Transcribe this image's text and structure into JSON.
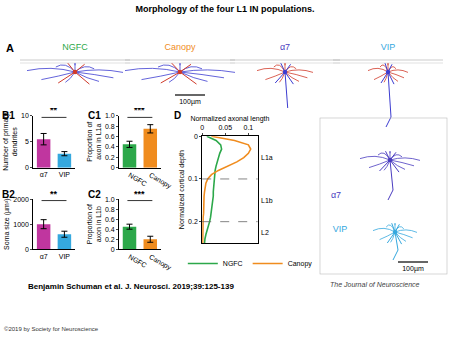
{
  "title": "Morphology of the four L1 IN populations.",
  "panel_a": {
    "label": "A",
    "cells": [
      {
        "name": "NGFC",
        "color": "#2ca84a"
      },
      {
        "name": "Canopy",
        "color": "#f08c1e"
      },
      {
        "name": "α7",
        "color": "#4a3cc0"
      },
      {
        "name": "VIP",
        "color": "#35a8de"
      }
    ],
    "scale_bar": "100µm"
  },
  "inset": {
    "cells": [
      {
        "name": "α7",
        "color": "#4a3cc0"
      },
      {
        "name": "VIP",
        "color": "#35a8de"
      }
    ],
    "scale_bar": "100µm"
  },
  "chart_data": [
    {
      "panel": "B1",
      "type": "bar",
      "categories": [
        "α7",
        "VIP"
      ],
      "values": [
        5.5,
        2.7
      ],
      "errors": [
        1.1,
        0.4
      ],
      "colors": [
        "#c0369f",
        "#35a8de"
      ],
      "y_label": "Number of primary dendrites",
      "ylim": [
        0,
        10
      ],
      "yticks": [
        0,
        5,
        10
      ],
      "significance": "**"
    },
    {
      "panel": "B2",
      "type": "bar",
      "categories": [
        "α7",
        "VIP"
      ],
      "values": [
        1000,
        600
      ],
      "errors": [
        180,
        120
      ],
      "colors": [
        "#c0369f",
        "#35a8de"
      ],
      "y_label": "Soma size (µm²)",
      "ylim": [
        0,
        2000
      ],
      "yticks": [
        0,
        1000,
        2000
      ],
      "significance": "**"
    },
    {
      "panel": "C1",
      "type": "bar",
      "categories": [
        "NGFC",
        "Canopy"
      ],
      "values": [
        0.45,
        0.75
      ],
      "errors": [
        0.06,
        0.08
      ],
      "colors": [
        "#2ca84a",
        "#f08c1e"
      ],
      "y_label": "Proportion of axon in L1a",
      "ylim": [
        0,
        1
      ],
      "yticks": [
        0,
        0.2,
        0.4,
        0.6,
        0.8,
        {
          "value": 1,
          "label": "1.0"
        }
      ],
      "significance": "***"
    },
    {
      "panel": "C2",
      "type": "bar",
      "categories": [
        "NGFC",
        "Canopy"
      ],
      "values": [
        0.45,
        0.2
      ],
      "errors": [
        0.05,
        0.06
      ],
      "colors": [
        "#2ca84a",
        "#f08c1e"
      ],
      "y_label": "Proportion of axon in L1b",
      "ylim": [
        0,
        1
      ],
      "yticks": [
        0,
        0.2,
        0.4,
        0.6,
        0.8,
        {
          "value": 1,
          "label": "1.0"
        }
      ],
      "significance": "***"
    },
    {
      "panel": "D",
      "type": "line",
      "x_label": "Normalized axonal length",
      "y_label": "Normalized cortical depth",
      "y": [
        0,
        0.01,
        0.02,
        0.03,
        0.04,
        0.05,
        0.06,
        0.07,
        0.08,
        0.09,
        0.1,
        0.11,
        0.12,
        0.13,
        0.14,
        0.15,
        0.16,
        0.17,
        0.18,
        0.19,
        0.2,
        0.21,
        0.22,
        0.23,
        0.24,
        0.25
      ],
      "series": [
        {
          "name": "NGFC",
          "color": "#2ca84a",
          "values": [
            0.01,
            0.03,
            0.04,
            0.042,
            0.038,
            0.035,
            0.032,
            0.03,
            0.028,
            0.027,
            0.026,
            0.025,
            0.025,
            0.024,
            0.024,
            0.023,
            0.022,
            0.021,
            0.02,
            0.018,
            0.016,
            0.013,
            0.01,
            0.008,
            0.006,
            0.005
          ]
        },
        {
          "name": "Canopy",
          "color": "#f08c1e",
          "values": [
            0.02,
            0.07,
            0.1,
            0.105,
            0.1,
            0.09,
            0.075,
            0.055,
            0.035,
            0.02,
            0.012,
            0.008,
            0.006,
            0.005,
            0.004,
            0.004,
            0.003,
            0.003,
            0.003,
            0.002,
            0.002,
            0.002,
            0.001,
            0.001,
            0.001,
            0.001
          ]
        }
      ],
      "xlim": [
        0,
        0.12
      ],
      "xticks": [
        0,
        0.05,
        0.1
      ],
      "ylim": [
        0.25,
        0
      ],
      "yticks": [
        0,
        0.1,
        0.2
      ],
      "layers": [
        {
          "label": "L1a",
          "depth": 0.05
        },
        {
          "label": "L1b",
          "depth": 0.15
        },
        {
          "label": "L2",
          "depth": 0.225
        }
      ],
      "boundaries": [
        0.1,
        0.2
      ],
      "legend": "bottom"
    }
  ],
  "citation": "Benjamin Schuman et al. J. Neurosci. 2019;39:125-139",
  "journal": "The Journal of Neuroscience",
  "copyright": "©2019 by Society for Neuroscience"
}
